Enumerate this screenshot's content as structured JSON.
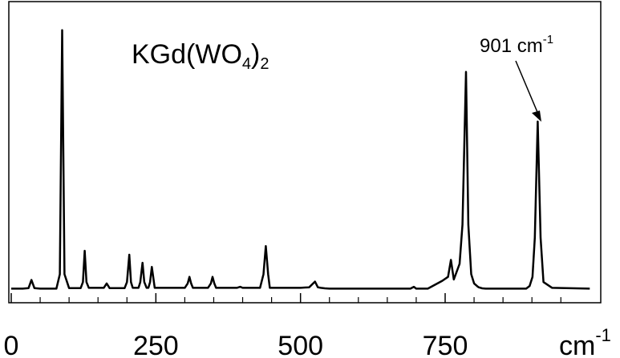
{
  "chart_data": {
    "type": "line",
    "title": "KGd(WO4)2",
    "title_parts": {
      "base": "KGd(WO",
      "sub1": "4",
      "close": ")",
      "sub2": "2"
    },
    "xlabel": "cm-1",
    "xlabel_parts": {
      "base": "cm",
      "sup": "-1"
    },
    "ylabel": "",
    "xlim": [
      0,
      1000
    ],
    "ylim": [
      0,
      1
    ],
    "x_ticks": [
      0,
      250,
      500,
      750
    ],
    "x_tick_labels": [
      "0",
      "250",
      "500",
      "750"
    ],
    "x_minor_ticks": [
      50,
      100,
      150,
      200,
      300,
      350,
      400,
      450,
      550,
      600,
      650,
      700,
      800,
      850,
      900,
      950
    ],
    "grid": false,
    "legend": "none",
    "line_color": "#000000",
    "annotations": [
      {
        "text": "901 cm-1",
        "base": "901 cm",
        "sup": "-1",
        "x": 901,
        "y": 0.65
      }
    ],
    "series": [
      {
        "x": [
          0,
          20,
          30,
          35,
          40,
          50,
          70,
          78,
          84,
          88,
          92,
          100,
          120,
          124,
          127,
          130,
          134,
          140,
          160,
          165,
          170,
          175,
          180,
          196,
          200,
          204,
          207,
          210,
          214,
          220,
          223,
          227,
          230,
          234,
          237,
          240,
          243,
          248,
          260,
          300,
          305,
          308,
          311,
          314,
          317,
          340,
          345,
          348,
          351,
          354,
          357,
          360,
          390,
          396,
          400,
          404,
          410,
          420,
          430,
          436,
          440,
          444,
          447,
          450,
          470,
          500,
          515,
          525,
          530,
          535,
          542,
          550,
          570,
          600,
          660,
          680,
          690,
          696,
          700,
          704,
          720,
          745,
          755,
          760,
          765,
          775,
          780,
          786,
          790,
          795,
          800,
          805,
          808,
          814,
          820,
          830,
          870,
          880,
          890,
          896,
          901,
          905,
          910,
          915,
          920,
          935,
          1000
        ],
        "y": [
          0.005,
          0.005,
          0.007,
          0.038,
          0.007,
          0.005,
          0.005,
          0.005,
          0.06,
          0.995,
          0.06,
          0.007,
          0.007,
          0.03,
          0.15,
          0.03,
          0.008,
          0.008,
          0.008,
          0.025,
          0.007,
          0.007,
          0.007,
          0.007,
          0.03,
          0.135,
          0.03,
          0.008,
          0.008,
          0.008,
          0.03,
          0.104,
          0.03,
          0.008,
          0.008,
          0.03,
          0.088,
          0.008,
          0.008,
          0.008,
          0.025,
          0.05,
          0.025,
          0.008,
          0.008,
          0.008,
          0.025,
          0.05,
          0.025,
          0.008,
          0.008,
          0.008,
          0.008,
          0.012,
          0.008,
          0.008,
          0.008,
          0.008,
          0.008,
          0.06,
          0.168,
          0.06,
          0.008,
          0.008,
          0.008,
          0.008,
          0.01,
          0.032,
          0.01,
          0.008,
          0.006,
          0.005,
          0.005,
          0.005,
          0.005,
          0.005,
          0.005,
          0.012,
          0.005,
          0.005,
          0.005,
          0.035,
          0.05,
          0.115,
          0.04,
          0.1,
          0.25,
          0.835,
          0.25,
          0.06,
          0.025,
          0.015,
          0.01,
          0.006,
          0.005,
          0.005,
          0.005,
          0.005,
          0.005,
          0.015,
          0.05,
          0.2,
          0.645,
          0.2,
          0.03,
          0.008,
          0.005
        ]
      }
    ]
  }
}
